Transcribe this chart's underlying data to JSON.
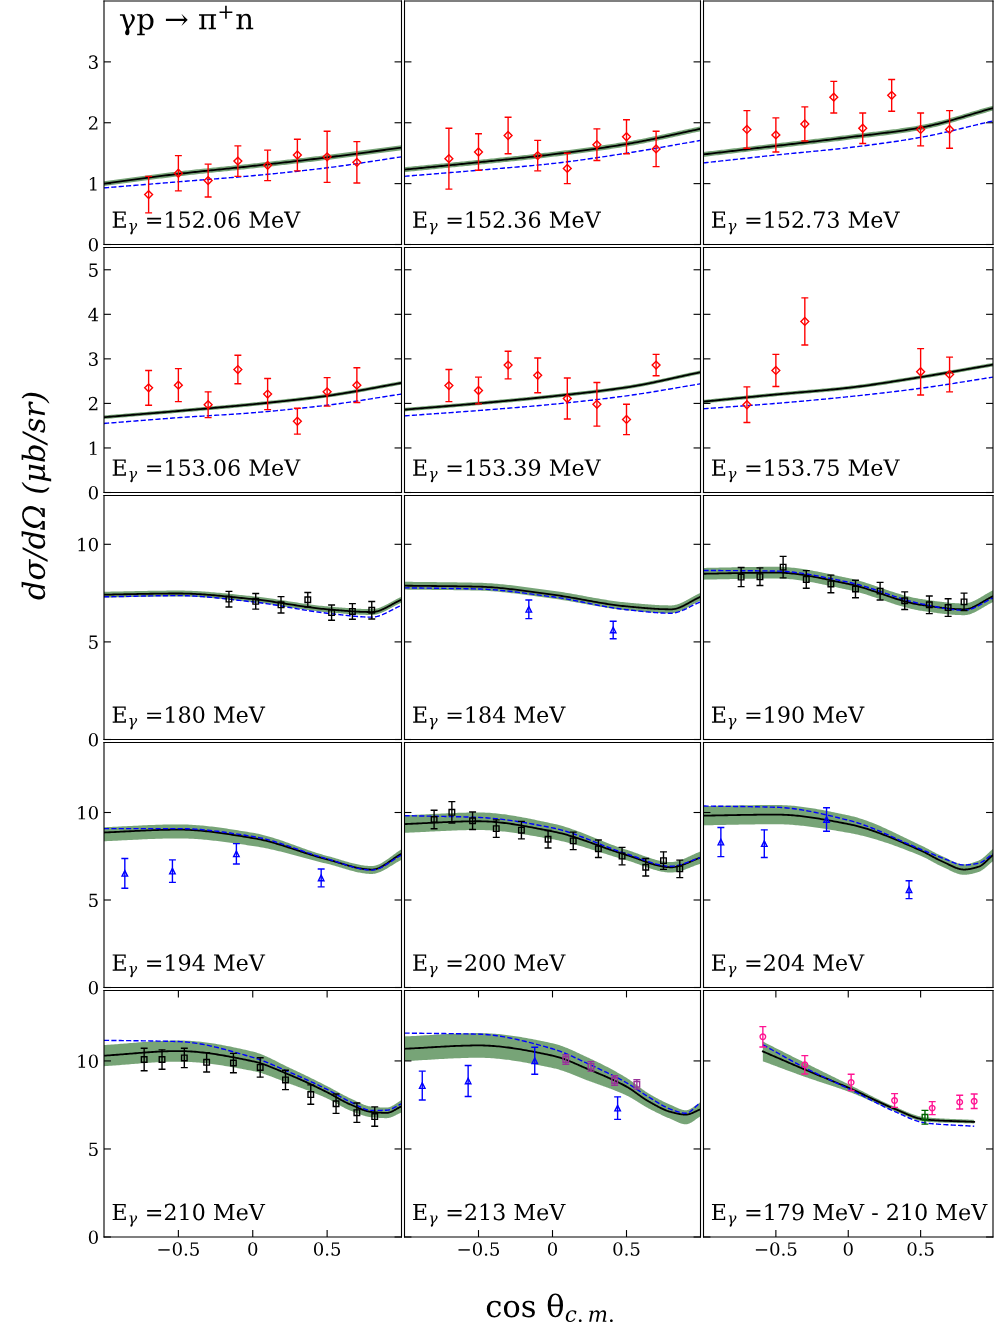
{
  "chart_data": [
    {
      "type": "line",
      "title": "γp → π$^{+}$n",
      "annotations": [
        "E$_{γ}$ =152.06 MeV"
      ],
      "xlim": [
        -1,
        1
      ],
      "ylim": [
        0,
        4
      ],
      "yticks": [
        0,
        1,
        2,
        3
      ],
      "tick_labels": "y",
      "series": [
        {
          "type": "line",
          "color": "#000000",
          "x": [
            -1,
            -0.5,
            0,
            0.5,
            1
          ],
          "values": [
            1.0,
            1.16,
            1.29,
            1.43,
            1.59
          ],
          "lower": [
            0.96,
            1.12,
            1.25,
            1.39,
            1.55
          ],
          "upper": [
            1.04,
            1.2,
            1.33,
            1.47,
            1.63
          ]
        },
        {
          "type": "line",
          "color": "#0000ff",
          "line_style": "dashed",
          "x": [
            -1,
            -0.5,
            0,
            0.5,
            1
          ],
          "values": [
            0.93,
            1.03,
            1.13,
            1.26,
            1.44
          ]
        },
        {
          "type": "scatter",
          "color": "#ff0000",
          "marker": "diamond",
          "x": [
            -0.7,
            -0.5,
            -0.3,
            -0.1,
            0.1,
            0.3,
            0.5,
            0.7
          ],
          "values": [
            0.82,
            1.17,
            1.05,
            1.37,
            1.3,
            1.47,
            1.44,
            1.35
          ],
          "errors": [
            0.3,
            0.29,
            0.27,
            0.25,
            0.25,
            0.26,
            0.42,
            0.34
          ]
        }
      ]
    },
    {
      "type": "line",
      "annotations": [
        "E$_{γ}$ =152.36 MeV"
      ],
      "xlim": [
        -1,
        1
      ],
      "ylim": [
        0,
        4
      ],
      "yticks": [
        0,
        1,
        2,
        3
      ],
      "tick_labels": false,
      "series": [
        {
          "type": "line",
          "color": "#000000",
          "x": [
            -1,
            -0.5,
            0,
            0.5,
            1
          ],
          "values": [
            1.23,
            1.35,
            1.48,
            1.65,
            1.9
          ],
          "lower": [
            1.19,
            1.31,
            1.44,
            1.61,
            1.86
          ],
          "upper": [
            1.27,
            1.39,
            1.52,
            1.69,
            1.94
          ]
        },
        {
          "type": "line",
          "color": "#0000ff",
          "line_style": "dashed",
          "x": [
            -1,
            -0.5,
            0,
            0.5,
            1
          ],
          "values": [
            1.12,
            1.22,
            1.33,
            1.5,
            1.71
          ]
        },
        {
          "type": "scatter",
          "color": "#ff0000",
          "marker": "diamond",
          "x": [
            -0.7,
            -0.5,
            -0.3,
            -0.1,
            0.1,
            0.3,
            0.5,
            0.7
          ],
          "values": [
            1.41,
            1.52,
            1.79,
            1.46,
            1.25,
            1.64,
            1.77,
            1.57
          ],
          "errors": [
            0.5,
            0.3,
            0.3,
            0.25,
            0.25,
            0.26,
            0.28,
            0.29
          ]
        }
      ]
    },
    {
      "type": "line",
      "annotations": [
        "E$_{γ}$ =152.73 MeV"
      ],
      "xlim": [
        -1,
        1
      ],
      "ylim": [
        0,
        4
      ],
      "yticks": [
        0,
        1,
        2,
        3
      ],
      "tick_labels": false,
      "series": [
        {
          "type": "line",
          "color": "#000000",
          "x": [
            -1,
            -0.5,
            0,
            0.5,
            1
          ],
          "values": [
            1.48,
            1.62,
            1.76,
            1.92,
            2.24
          ],
          "lower": [
            1.44,
            1.58,
            1.72,
            1.88,
            2.2
          ],
          "upper": [
            1.52,
            1.66,
            1.8,
            1.96,
            2.28
          ]
        },
        {
          "type": "line",
          "color": "#0000ff",
          "line_style": "dashed",
          "x": [
            -1,
            -0.5,
            0,
            0.5,
            1
          ],
          "values": [
            1.34,
            1.47,
            1.59,
            1.76,
            2.03
          ]
        },
        {
          "type": "scatter",
          "color": "#ff0000",
          "marker": "diamond",
          "x": [
            -0.7,
            -0.5,
            -0.3,
            -0.1,
            0.1,
            0.3,
            0.5,
            0.7
          ],
          "values": [
            1.89,
            1.8,
            1.98,
            2.42,
            1.91,
            2.45,
            1.89,
            1.89
          ],
          "errors": [
            0.31,
            0.28,
            0.28,
            0.26,
            0.25,
            0.26,
            0.27,
            0.31
          ]
        }
      ]
    },
    {
      "type": "line",
      "annotations": [
        "E$_{γ}$ =153.06 MeV"
      ],
      "xlim": [
        -1,
        1
      ],
      "ylim": [
        0,
        5.5
      ],
      "yticks": [
        0,
        1,
        2,
        3,
        4,
        5
      ],
      "tick_labels": "y",
      "series": [
        {
          "type": "line",
          "color": "#000000",
          "x": [
            -1,
            -0.5,
            0,
            0.5,
            1
          ],
          "values": [
            1.69,
            1.83,
            1.98,
            2.17,
            2.46
          ],
          "lower": [
            1.65,
            1.79,
            1.94,
            2.13,
            2.42
          ],
          "upper": [
            1.73,
            1.87,
            2.02,
            2.21,
            2.5
          ]
        },
        {
          "type": "line",
          "color": "#0000ff",
          "line_style": "dashed",
          "x": [
            -1,
            -0.5,
            0,
            0.5,
            1
          ],
          "values": [
            1.55,
            1.68,
            1.79,
            1.96,
            2.21
          ]
        },
        {
          "type": "scatter",
          "color": "#ff0000",
          "marker": "diamond",
          "x": [
            -0.7,
            -0.5,
            -0.3,
            -0.1,
            0.1,
            0.3,
            0.5,
            0.7
          ],
          "values": [
            2.35,
            2.41,
            1.97,
            2.76,
            2.21,
            1.6,
            2.26,
            2.41
          ],
          "errors": [
            0.39,
            0.37,
            0.29,
            0.32,
            0.35,
            0.29,
            0.32,
            0.39
          ]
        }
      ]
    },
    {
      "type": "line",
      "annotations": [
        "E$_{γ}$ =153.39 MeV"
      ],
      "xlim": [
        -1,
        1
      ],
      "ylim": [
        0,
        5.5
      ],
      "yticks": [
        0,
        1,
        2,
        3,
        4,
        5
      ],
      "tick_labels": false,
      "series": [
        {
          "type": "line",
          "color": "#000000",
          "x": [
            -1,
            -0.5,
            0,
            0.5,
            1
          ],
          "values": [
            1.86,
            2.0,
            2.16,
            2.36,
            2.7
          ],
          "lower": [
            1.82,
            1.96,
            2.12,
            2.32,
            2.66
          ],
          "upper": [
            1.9,
            2.04,
            2.2,
            2.4,
            2.74
          ]
        },
        {
          "type": "line",
          "color": "#0000ff",
          "line_style": "dashed",
          "x": [
            -1,
            -0.5,
            0,
            0.5,
            1
          ],
          "values": [
            1.72,
            1.84,
            1.98,
            2.17,
            2.44
          ]
        },
        {
          "type": "scatter",
          "color": "#ff0000",
          "marker": "diamond",
          "x": [
            -0.7,
            -0.5,
            -0.3,
            -0.1,
            0.1,
            0.3,
            0.5,
            0.7
          ],
          "values": [
            2.4,
            2.29,
            2.86,
            2.63,
            2.11,
            1.98,
            1.64,
            2.86
          ],
          "errors": [
            0.36,
            0.3,
            0.31,
            0.39,
            0.46,
            0.49,
            0.34,
            0.24
          ]
        }
      ]
    },
    {
      "type": "line",
      "annotations": [
        "E$_{γ}$ =153.75 MeV"
      ],
      "xlim": [
        -1,
        1
      ],
      "ylim": [
        0,
        5.5
      ],
      "yticks": [
        0,
        1,
        2,
        3,
        4,
        5
      ],
      "tick_labels": false,
      "series": [
        {
          "type": "line",
          "color": "#000000",
          "x": [
            -1,
            -0.5,
            0,
            0.5,
            1
          ],
          "values": [
            2.04,
            2.2,
            2.35,
            2.59,
            2.87
          ],
          "lower": [
            2.0,
            2.16,
            2.31,
            2.55,
            2.83
          ],
          "upper": [
            2.08,
            2.24,
            2.39,
            2.63,
            2.91
          ]
        },
        {
          "type": "line",
          "color": "#0000ff",
          "line_style": "dashed",
          "x": [
            -1,
            -0.5,
            0,
            0.5,
            1
          ],
          "values": [
            1.88,
            2.0,
            2.15,
            2.34,
            2.59
          ]
        },
        {
          "type": "scatter",
          "color": "#ff0000",
          "marker": "diamond",
          "x": [
            -0.7,
            -0.5,
            -0.3,
            0.5,
            0.7
          ],
          "values": [
            1.97,
            2.74,
            3.84,
            2.71,
            2.65
          ],
          "errors": [
            0.4,
            0.36,
            0.53,
            0.52,
            0.39
          ]
        }
      ]
    },
    {
      "type": "line",
      "ylabel": "dσ/dΩ (μb/sr)",
      "annotations": [
        "E$_{γ}$ =180 MeV"
      ],
      "xlim": [
        -1,
        1
      ],
      "ylim": [
        0,
        12.5
      ],
      "yticks": [
        0,
        5,
        10
      ],
      "tick_labels": "y",
      "series": [
        {
          "type": "line",
          "color": "#000000",
          "x": [
            -1,
            -0.5,
            0,
            0.5,
            0.8,
            1
          ],
          "values": [
            7.42,
            7.48,
            7.19,
            6.67,
            6.53,
            7.16
          ],
          "lower": [
            7.27,
            7.33,
            7.04,
            6.52,
            6.38,
            7.01
          ],
          "upper": [
            7.57,
            7.63,
            7.34,
            6.82,
            6.68,
            7.31
          ]
        },
        {
          "type": "line",
          "color": "#0000ff",
          "line_style": "dashed",
          "x": [
            -1,
            -0.5,
            0,
            0.5,
            0.8,
            1
          ],
          "values": [
            7.31,
            7.37,
            7.05,
            6.47,
            6.27,
            6.87
          ]
        },
        {
          "type": "scatter",
          "color": "#000000",
          "marker": "square",
          "x": [
            -0.16,
            0.02,
            0.19,
            0.37,
            0.53,
            0.67,
            0.8
          ],
          "values": [
            7.19,
            7.08,
            6.9,
            7.16,
            6.5,
            6.56,
            6.62
          ],
          "errors": [
            0.4,
            0.4,
            0.42,
            0.37,
            0.39,
            0.4,
            0.45
          ]
        }
      ]
    },
    {
      "type": "line",
      "annotations": [
        "E$_{γ}$ =184 MeV"
      ],
      "xlim": [
        -1,
        1
      ],
      "ylim": [
        0,
        12.5
      ],
      "yticks": [
        0,
        5,
        10
      ],
      "tick_labels": false,
      "series": [
        {
          "type": "line",
          "color": "#000000",
          "x": [
            -1,
            -0.5,
            0,
            0.5,
            0.8,
            1
          ],
          "values": [
            7.88,
            7.83,
            7.42,
            6.82,
            6.67,
            7.31
          ],
          "lower": [
            7.68,
            7.63,
            7.22,
            6.62,
            6.47,
            7.11
          ],
          "upper": [
            8.08,
            8.03,
            7.62,
            7.02,
            6.87,
            7.51
          ]
        },
        {
          "type": "line",
          "color": "#0000ff",
          "line_style": "dashed",
          "x": [
            -1,
            -0.5,
            0,
            0.5,
            0.8,
            1
          ],
          "values": [
            7.77,
            7.71,
            7.31,
            6.65,
            6.47,
            7.05
          ]
        },
        {
          "type": "scatter",
          "color": "#0000ff",
          "marker": "triangle",
          "x": [
            -0.16,
            0.41
          ],
          "values": [
            6.67,
            5.61
          ],
          "errors": [
            0.48,
            0.45
          ]
        }
      ]
    },
    {
      "type": "line",
      "annotations": [
        "E$_{γ}$ =190 MeV"
      ],
      "xlim": [
        -1,
        1
      ],
      "ylim": [
        0,
        12.5
      ],
      "yticks": [
        0,
        5,
        10
      ],
      "tick_labels": false,
      "series": [
        {
          "type": "line",
          "color": "#000000",
          "x": [
            -1,
            -0.5,
            0,
            0.5,
            0.8,
            1
          ],
          "values": [
            8.49,
            8.55,
            7.97,
            6.9,
            6.67,
            7.34
          ],
          "lower": [
            8.19,
            8.25,
            7.67,
            6.6,
            6.37,
            7.04
          ],
          "upper": [
            8.79,
            8.85,
            8.27,
            7.2,
            6.97,
            7.64
          ]
        },
        {
          "type": "line",
          "color": "#0000ff",
          "line_style": "dashed",
          "x": [
            -1,
            -0.5,
            0,
            0.5,
            0.8,
            1
          ],
          "values": [
            8.66,
            8.63,
            8.06,
            6.96,
            6.62,
            7.25
          ]
        },
        {
          "type": "scatter",
          "color": "#000000",
          "marker": "square",
          "x": [
            -0.74,
            -0.61,
            -0.45,
            -0.29,
            -0.12,
            0.05,
            0.22,
            0.39,
            0.56,
            0.69,
            0.8
          ],
          "values": [
            8.32,
            8.34,
            8.83,
            8.2,
            7.97,
            7.71,
            7.6,
            7.11,
            6.9,
            6.76,
            7.05
          ],
          "errors": [
            0.49,
            0.45,
            0.55,
            0.45,
            0.45,
            0.45,
            0.45,
            0.45,
            0.45,
            0.45,
            0.45
          ]
        }
      ]
    },
    {
      "type": "line",
      "annotations": [
        "E$_{γ}$ =194 MeV"
      ],
      "xlim": [
        -1,
        1
      ],
      "ylim": [
        0,
        14
      ],
      "yticks": [
        0,
        5,
        10
      ],
      "tick_labels": "y",
      "series": [
        {
          "type": "line",
          "color": "#000000",
          "x": [
            -1,
            -0.5,
            0,
            0.5,
            0.8,
            1
          ],
          "values": [
            8.86,
            9.02,
            8.54,
            7.32,
            6.74,
            7.64
          ],
          "lower": [
            8.36,
            8.52,
            8.09,
            7.07,
            6.49,
            7.29
          ],
          "upper": [
            9.16,
            9.32,
            8.84,
            7.52,
            6.94,
            7.89
          ]
        },
        {
          "type": "line",
          "color": "#0000ff",
          "line_style": "dashed",
          "x": [
            -1,
            -0.5,
            0,
            0.5,
            0.8,
            1
          ],
          "values": [
            9.08,
            9.08,
            8.63,
            7.35,
            6.71,
            7.57
          ]
        },
        {
          "type": "scatter",
          "color": "#0000ff",
          "marker": "triangle",
          "x": [
            -0.86,
            -0.54,
            -0.11,
            0.46
          ],
          "values": [
            6.52,
            6.65,
            7.64,
            6.26
          ],
          "errors": [
            0.85,
            0.64,
            0.58,
            0.51
          ]
        }
      ]
    },
    {
      "type": "line",
      "annotations": [
        "E$_{γ}$ =200 MeV"
      ],
      "xlim": [
        -1,
        1
      ],
      "ylim": [
        0,
        14
      ],
      "yticks": [
        0,
        5,
        10
      ],
      "tick_labels": false,
      "series": [
        {
          "type": "line",
          "color": "#000000",
          "x": [
            -1,
            -0.5,
            0,
            0.5,
            0.8,
            1
          ],
          "values": [
            9.34,
            9.5,
            8.92,
            7.57,
            6.87,
            7.42
          ],
          "lower": [
            8.84,
            9.0,
            8.47,
            7.27,
            6.57,
            7.07
          ],
          "upper": [
            9.84,
            10.0,
            9.37,
            7.87,
            7.17,
            7.77
          ]
        },
        {
          "type": "line",
          "color": "#0000ff",
          "line_style": "dashed",
          "x": [
            -1,
            -0.5,
            0,
            0.5,
            0.8,
            1
          ],
          "values": [
            9.82,
            9.72,
            9.12,
            7.64,
            6.93,
            7.42
          ]
        },
        {
          "type": "scatter",
          "color": "#000000",
          "marker": "square",
          "x": [
            -0.8,
            -0.68,
            -0.54,
            -0.38,
            -0.21,
            -0.03,
            0.14,
            0.31,
            0.47,
            0.63,
            0.75,
            0.86
          ],
          "values": [
            9.6,
            10.01,
            9.53,
            9.08,
            8.99,
            8.47,
            8.38,
            7.93,
            7.51,
            6.87,
            7.25,
            6.78
          ],
          "errors": [
            0.53,
            0.61,
            0.5,
            0.5,
            0.5,
            0.5,
            0.5,
            0.5,
            0.5,
            0.5,
            0.5,
            0.5
          ]
        }
      ]
    },
    {
      "type": "line",
      "annotations": [
        "E$_{γ}$ =204 MeV"
      ],
      "xlim": [
        -1,
        1
      ],
      "ylim": [
        0,
        14
      ],
      "yticks": [
        0,
        5,
        10
      ],
      "tick_labels": false,
      "series": [
        {
          "type": "line",
          "color": "#000000",
          "x": [
            -1,
            -0.5,
            0,
            0.5,
            0.65,
            0.8,
            0.9,
            1
          ],
          "values": [
            9.82,
            9.88,
            9.34,
            7.83,
            7.2,
            6.74,
            6.9,
            7.57
          ],
          "lower": [
            9.27,
            9.33,
            8.84,
            7.53,
            6.9,
            6.44,
            6.6,
            7.22
          ],
          "upper": [
            10.37,
            10.43,
            9.84,
            8.13,
            7.5,
            7.04,
            7.25,
            7.92
          ]
        },
        {
          "type": "line",
          "color": "#0000ff",
          "line_style": "dashed",
          "x": [
            -1,
            -0.5,
            0,
            0.5,
            0.65,
            0.8,
            0.9,
            1
          ],
          "values": [
            10.37,
            10.3,
            9.56,
            7.9,
            7.4,
            7.0,
            7.1,
            7.64
          ]
        },
        {
          "type": "scatter",
          "color": "#0000ff",
          "marker": "triangle",
          "x": [
            -0.88,
            -0.58,
            -0.15,
            0.42
          ],
          "values": [
            8.31,
            8.22,
            9.6,
            5.59
          ],
          "errors": [
            0.83,
            0.79,
            0.67,
            0.51
          ]
        }
      ]
    },
    {
      "type": "line",
      "annotations": [
        "E$_{γ}$ =210 MeV"
      ],
      "xlim": [
        -1,
        1
      ],
      "ylim": [
        0,
        14
      ],
      "xticks": [
        -0.5,
        0,
        0.5
      ],
      "yticks": [
        0,
        5,
        10
      ],
      "series": [
        {
          "type": "line",
          "color": "#000000",
          "x": [
            -1,
            -0.5,
            0,
            0.25,
            0.5,
            0.65,
            0.8,
            0.9,
            1
          ],
          "values": [
            10.3,
            10.56,
            9.98,
            9.2,
            8.22,
            7.55,
            7.1,
            7.05,
            7.42
          ],
          "lower": [
            9.7,
            9.96,
            9.43,
            8.7,
            7.87,
            7.2,
            6.8,
            6.75,
            7.07
          ],
          "upper": [
            10.9,
            11.16,
            10.53,
            9.6,
            8.57,
            7.9,
            7.4,
            7.35,
            7.77
          ]
        },
        {
          "type": "line",
          "color": "#0000ff",
          "line_style": "dashed",
          "x": [
            -1,
            -0.5,
            0,
            0.25,
            0.5,
            0.65,
            0.8,
            0.9,
            1
          ],
          "values": [
            11.17,
            11.1,
            10.2,
            9.35,
            8.38,
            7.7,
            7.19,
            7.2,
            7.57
          ]
        },
        {
          "type": "scatter",
          "color": "#000000",
          "marker": "square",
          "x": [
            -0.73,
            -0.61,
            -0.46,
            -0.31,
            -0.13,
            0.05,
            0.22,
            0.39,
            0.56,
            0.7,
            0.82
          ],
          "values": [
            10.08,
            10.08,
            10.17,
            9.92,
            9.88,
            9.63,
            8.92,
            8.09,
            7.57,
            7.06,
            6.84
          ],
          "errors": [
            0.64,
            0.55,
            0.55,
            0.55,
            0.55,
            0.55,
            0.55,
            0.55,
            0.55,
            0.55,
            0.55
          ]
        }
      ]
    },
    {
      "type": "line",
      "xlabel": "cos θ$_{c.m.}$",
      "annotations": [
        "E$_{γ}$ =213 MeV"
      ],
      "xlim": [
        -1,
        1
      ],
      "ylim": [
        0,
        14
      ],
      "xticks": [
        -0.5,
        0,
        0.5
      ],
      "yticks": [
        0,
        5,
        10
      ],
      "tick_labels": "x",
      "series": [
        {
          "type": "line",
          "color": "#000000",
          "x": [
            -1,
            -0.5,
            0,
            0.25,
            0.5,
            0.65,
            0.8,
            0.9,
            1
          ],
          "values": [
            10.69,
            10.88,
            10.3,
            9.5,
            8.54,
            7.7,
            7.1,
            6.95,
            7.25
          ],
          "lower": [
            9.99,
            10.18,
            9.6,
            8.85,
            8.04,
            7.3,
            6.7,
            6.4,
            6.85
          ],
          "upper": [
            11.39,
            11.58,
            11.0,
            10.15,
            9.04,
            8.15,
            7.5,
            7.2,
            7.65
          ]
        },
        {
          "type": "line",
          "color": "#0000ff",
          "line_style": "dashed",
          "x": [
            -1,
            -0.5,
            0,
            0.25,
            0.5,
            0.65,
            0.8,
            0.9,
            1
          ],
          "values": [
            11.58,
            11.52,
            10.69,
            9.8,
            8.76,
            7.95,
            7.25,
            7.03,
            7.64
          ]
        },
        {
          "type": "scatter",
          "color": "#0000ff",
          "marker": "triangle",
          "x": [
            -0.88,
            -0.57,
            -0.12,
            0.44
          ],
          "values": [
            8.6,
            8.86,
            10.01,
            7.32
          ],
          "errors": [
            0.82,
            0.88,
            0.77,
            0.64
          ]
        },
        {
          "type": "scatter",
          "color": "#993399",
          "marker": "square",
          "x": [
            0.09,
            0.26,
            0.42,
            0.57
          ],
          "values": [
            10.08,
            9.69,
            8.89,
            8.67
          ],
          "errors": [
            0.27,
            0.27,
            0.27,
            0.27
          ]
        }
      ]
    },
    {
      "type": "line",
      "annotations": [
        "E$_{γ}$ =179 MeV - 210 MeV"
      ],
      "xlim": [
        -1,
        1
      ],
      "ylim": [
        0,
        14
      ],
      "xticks": [
        -0.5,
        0,
        0.5
      ],
      "yticks": [
        0,
        5,
        10
      ],
      "tick_labels": "x",
      "series": [
        {
          "type": "line",
          "color": "#000000",
          "x": [
            -0.59,
            -0.3,
            0.02,
            0.32,
            0.53,
            0.87
          ],
          "values": [
            10.54,
            9.51,
            8.41,
            7.28,
            6.67,
            6.54
          ],
          "lower": [
            9.98,
            9.1,
            8.2,
            7.15,
            6.55,
            6.45
          ],
          "upper": [
            11.1,
            9.9,
            8.6,
            7.4,
            6.8,
            6.65
          ]
        },
        {
          "type": "line",
          "color": "#0000ff",
          "line_style": "dashed",
          "x": [
            -0.59,
            -0.3,
            0.02,
            0.32,
            0.53,
            0.87
          ],
          "values": [
            10.92,
            9.61,
            8.35,
            7.13,
            6.48,
            6.29
          ]
        },
        {
          "type": "scatter",
          "color": "#ff1493",
          "marker": "circle",
          "x": [
            -0.59,
            -0.3,
            0.02,
            0.32,
            0.58,
            0.77,
            0.87
          ],
          "values": [
            11.37,
            9.78,
            8.78,
            7.75,
            7.32,
            7.66,
            7.71
          ],
          "errors": [
            0.58,
            0.52,
            0.46,
            0.39,
            0.37,
            0.39,
            0.41
          ]
        },
        {
          "type": "scatter",
          "color": "#006400",
          "marker": "square",
          "x": [
            0.53
          ],
          "values": [
            6.8
          ],
          "errors": [
            0.39
          ]
        }
      ]
    }
  ]
}
